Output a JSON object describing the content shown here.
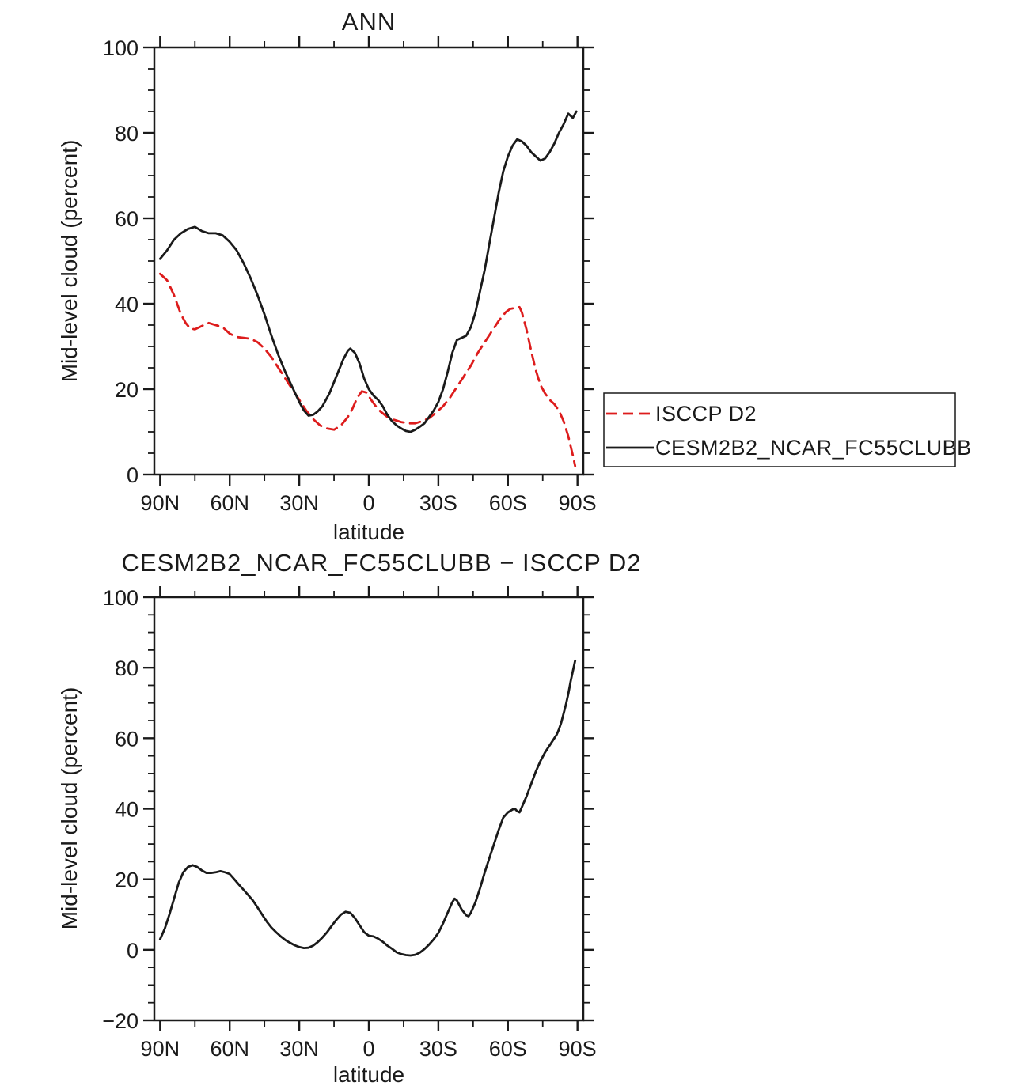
{
  "figure": {
    "background": "#ffffff",
    "axis_color": "#1a1a1a"
  },
  "chart_data": [
    {
      "type": "line",
      "title": "ANN",
      "xlabel": "latitude",
      "ylabel": "Mid-level cloud (percent)",
      "xlim": [
        92.5,
        -92.5
      ],
      "ylim": [
        0,
        100
      ],
      "xtick_values": [
        90,
        60,
        30,
        0,
        -30,
        -60,
        -90
      ],
      "xtick_labels": [
        "90N",
        "60N",
        "30N",
        "0",
        "30S",
        "60S",
        "90S"
      ],
      "ytick_values": [
        0,
        20,
        40,
        60,
        80,
        100
      ],
      "ytick_labels": [
        "0",
        "20",
        "40",
        "60",
        "80",
        "100"
      ],
      "xminor_step": 15,
      "yminor_step": 5,
      "grid": false,
      "legend_position": "right-middle-outside",
      "series": [
        {
          "name": "ISCCP D2",
          "color": "#dd1c1c",
          "dash": true,
          "x": [
            90,
            87,
            84,
            81,
            79,
            77,
            75,
            72,
            69,
            66,
            63,
            60,
            57,
            54,
            51,
            48,
            45,
            42,
            39,
            36,
            33,
            30,
            27,
            24,
            21,
            18,
            15,
            12,
            9,
            7,
            5,
            3,
            1,
            -1,
            -3,
            -5,
            -8,
            -11,
            -14,
            -17,
            -20,
            -23,
            -26,
            -29,
            -32,
            -35,
            -38,
            -41,
            -44,
            -47,
            -50,
            -53,
            -56,
            -59,
            -61,
            -63,
            -65,
            -66,
            -68,
            -70,
            -72,
            -74,
            -76,
            -78,
            -80,
            -82,
            -84,
            -86,
            -88,
            -89
          ],
          "y": [
            47,
            45.5,
            42,
            37.5,
            35.5,
            34.2,
            34,
            34.8,
            35.5,
            35,
            34.5,
            33,
            32.2,
            32,
            31.8,
            31,
            29.5,
            27.5,
            25,
            22.5,
            20,
            17.5,
            15,
            13,
            11.5,
            10.8,
            10.5,
            11.5,
            13.5,
            15.5,
            18,
            19.5,
            19.2,
            17.5,
            16,
            14.8,
            13.5,
            12.8,
            12.3,
            12,
            12,
            12.5,
            13.2,
            14.5,
            16,
            18,
            20.5,
            23,
            25.5,
            28.5,
            31,
            33.5,
            36,
            38,
            38.8,
            39,
            39.2,
            38,
            34,
            29,
            24.5,
            21,
            19,
            17.5,
            16.5,
            15,
            12.5,
            9,
            4.5,
            2
          ]
        },
        {
          "name": "CESM2B2_NCAR_FC55CLUBB",
          "color": "#1a1a1a",
          "dash": false,
          "x": [
            90,
            87,
            84,
            81,
            78,
            75,
            72,
            69,
            66,
            63,
            60,
            57,
            54,
            51,
            48,
            45,
            42,
            39,
            36,
            33,
            30,
            28,
            26,
            24,
            22,
            20,
            17,
            14,
            11,
            9,
            8,
            6,
            4,
            2,
            0,
            -2,
            -4,
            -6,
            -8,
            -10,
            -12,
            -14,
            -16,
            -18,
            -20,
            -22,
            -24,
            -26,
            -28,
            -30,
            -32,
            -34,
            -36,
            -38,
            -40,
            -42,
            -44,
            -46,
            -48,
            -50,
            -52,
            -54,
            -56,
            -58,
            -60,
            -62,
            -64,
            -66,
            -68,
            -70,
            -72,
            -74,
            -76,
            -78,
            -80,
            -82,
            -84,
            -86,
            -88,
            -89.5
          ],
          "y": [
            50.5,
            52.5,
            55,
            56.5,
            57.5,
            58,
            57,
            56.5,
            56.5,
            56,
            54.5,
            52.5,
            49.5,
            46,
            42,
            37.5,
            32.5,
            28,
            24,
            20.5,
            17,
            15,
            13.8,
            14,
            14.8,
            16,
            19,
            23,
            27,
            29,
            29.5,
            28.5,
            26,
            22.5,
            20,
            18.5,
            17.5,
            16,
            14,
            12.5,
            11.5,
            10.8,
            10.2,
            10,
            10.5,
            11.2,
            12,
            13.5,
            15,
            17,
            20,
            24,
            28.5,
            31.5,
            32,
            32.5,
            34.5,
            38,
            43,
            48,
            54,
            60,
            66,
            71,
            74.5,
            77,
            78.5,
            78,
            77,
            75.5,
            74.5,
            73.5,
            74,
            75.5,
            77.5,
            80,
            82,
            84.5,
            83.5,
            85
          ]
        }
      ]
    },
    {
      "type": "line",
      "title": "CESM2B2_NCAR_FC55CLUBB − ISCCP D2",
      "xlabel": "latitude",
      "ylabel": "Mid-level cloud (percent)",
      "xlim": [
        92.5,
        -92.5
      ],
      "ylim": [
        -20,
        100
      ],
      "xtick_values": [
        90,
        60,
        30,
        0,
        -30,
        -60,
        -90
      ],
      "xtick_labels": [
        "90N",
        "60N",
        "30N",
        "0",
        "30S",
        "60S",
        "90S"
      ],
      "ytick_values": [
        -20,
        0,
        20,
        40,
        60,
        80,
        100
      ],
      "ytick_labels": [
        "−20",
        "0",
        "20",
        "40",
        "60",
        "80",
        "100"
      ],
      "xminor_step": 15,
      "yminor_step": 5,
      "grid": false,
      "legend_position": "none",
      "series": [
        {
          "name": "CESM2B2_NCAR_FC55CLUBB minus ISCCP D2",
          "color": "#1a1a1a",
          "dash": false,
          "x": [
            90,
            88,
            86,
            84,
            82,
            80,
            78,
            76,
            74,
            72,
            70,
            68,
            66,
            64,
            62,
            60,
            58,
            56,
            54,
            52,
            50,
            48,
            46,
            44,
            42,
            40,
            38,
            36,
            34,
            32,
            30,
            28,
            26,
            24,
            22,
            20,
            18,
            16,
            14,
            12,
            10,
            8,
            6,
            4,
            2,
            0,
            -2,
            -4,
            -6,
            -8,
            -10,
            -12,
            -14,
            -16,
            -18,
            -20,
            -22,
            -24,
            -26,
            -28,
            -30,
            -32,
            -34,
            -36,
            -37,
            -38,
            -40,
            -42,
            -43,
            -44,
            -46,
            -48,
            -50,
            -52,
            -54,
            -56,
            -58,
            -60,
            -62,
            -63,
            -64,
            -65,
            -66,
            -68,
            -70,
            -72,
            -74,
            -76,
            -78,
            -80,
            -81,
            -82,
            -83,
            -84,
            -85,
            -86,
            -87,
            -88,
            -89
          ],
          "y": [
            3,
            6,
            10,
            14.5,
            19,
            22,
            23.5,
            24,
            23.5,
            22.5,
            21.8,
            21.8,
            22,
            22.3,
            22,
            21.5,
            20,
            18.5,
            17,
            15.5,
            14,
            12,
            10,
            8,
            6.3,
            5,
            3.8,
            2.8,
            2,
            1.3,
            0.8,
            0.5,
            0.6,
            1.2,
            2.2,
            3.5,
            5,
            6.8,
            8.5,
            10,
            10.8,
            10.5,
            9,
            7,
            5,
            4,
            3.8,
            3.2,
            2.3,
            1.2,
            0.3,
            -0.7,
            -1.2,
            -1.5,
            -1.6,
            -1.4,
            -0.8,
            0.2,
            1.5,
            3,
            4.8,
            7.5,
            10.5,
            13.5,
            14.5,
            14,
            11.5,
            9.8,
            9.5,
            10.5,
            13.5,
            17.5,
            22,
            26,
            30,
            34,
            37.5,
            39,
            39.8,
            40,
            39.3,
            39,
            40.5,
            43.5,
            47,
            50.5,
            53.5,
            56,
            58,
            60,
            61,
            62.5,
            64.5,
            67,
            69.5,
            72.5,
            76,
            79,
            82
          ]
        }
      ]
    }
  ]
}
